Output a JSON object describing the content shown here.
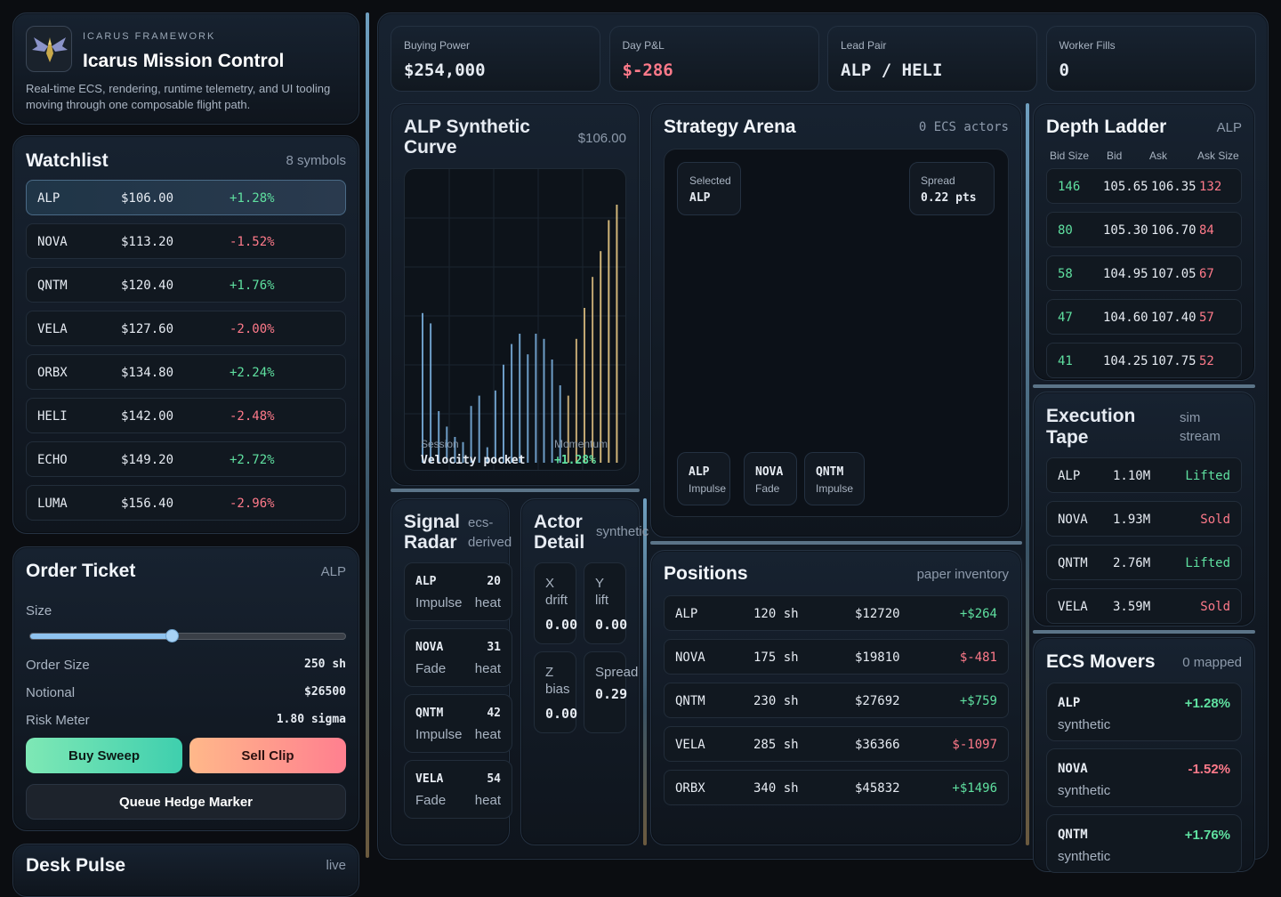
{
  "brand": {
    "kicker": "ICARUS FRAMEWORK",
    "title": "Icarus Mission Control",
    "desc": "Real-time ECS, rendering, runtime telemetry, and UI tooling moving through one composable flight path."
  },
  "watchlist": {
    "title": "Watchlist",
    "count": "8 symbols",
    "items": [
      {
        "sym": "ALP",
        "price": "$106.00",
        "chg": "+1.28%",
        "dir": "pos"
      },
      {
        "sym": "NOVA",
        "price": "$113.20",
        "chg": "-1.52%",
        "dir": "neg"
      },
      {
        "sym": "QNTM",
        "price": "$120.40",
        "chg": "+1.76%",
        "dir": "pos"
      },
      {
        "sym": "VELA",
        "price": "$127.60",
        "chg": "-2.00%",
        "dir": "neg"
      },
      {
        "sym": "ORBX",
        "price": "$134.80",
        "chg": "+2.24%",
        "dir": "pos"
      },
      {
        "sym": "HELI",
        "price": "$142.00",
        "chg": "-2.48%",
        "dir": "neg"
      },
      {
        "sym": "ECHO",
        "price": "$149.20",
        "chg": "+2.72%",
        "dir": "pos"
      },
      {
        "sym": "LUMA",
        "price": "$156.40",
        "chg": "-2.96%",
        "dir": "neg"
      }
    ]
  },
  "ticket": {
    "title": "Order Ticket",
    "symbol": "ALP",
    "size_label": "Size",
    "slider_value": 0.45,
    "order_size_label": "Order Size",
    "order_size": "250 sh",
    "notional_label": "Notional",
    "notional": "$26500",
    "risk_label": "Risk Meter",
    "risk": "1.80 sigma",
    "buy": "Buy Sweep",
    "sell": "Sell Clip",
    "hedge": "Queue Hedge Marker"
  },
  "pulse": {
    "title": "Desk Pulse",
    "status": "live"
  },
  "stats": [
    {
      "label": "Buying Power",
      "value": "$254,000",
      "dir": ""
    },
    {
      "label": "Day P&L",
      "value": "$-286",
      "dir": "neg"
    },
    {
      "label": "Lead Pair",
      "value": "ALP / HELI",
      "dir": ""
    },
    {
      "label": "Worker Fills",
      "value": "0",
      "dir": ""
    }
  ],
  "curve": {
    "title": "ALP Synthetic Curve",
    "price": "$106.00",
    "session_label": "Session",
    "session_value": "Velocity pocket",
    "momentum_label": "Momentum",
    "momentum_value": "+1.28%",
    "bars": [
      0.58,
      0.54,
      0.2,
      0.14,
      0.1,
      0.08,
      0.22,
      0.26,
      0.06,
      0.28,
      0.38,
      0.46,
      0.5,
      0.42,
      0.5,
      0.48,
      0.4,
      0.3,
      0.26,
      0.48,
      0.6,
      0.72,
      0.82,
      0.94,
      1.0
    ]
  },
  "arena": {
    "title": "Strategy Arena",
    "actors": "0 ECS actors",
    "selected_label": "Selected",
    "selected_value": "ALP",
    "spread_label": "Spread",
    "spread_value": "0.22 pts",
    "chips": [
      {
        "sym": "ALP",
        "mode": "Impulse"
      },
      {
        "sym": "NOVA",
        "mode": "Fade"
      },
      {
        "sym": "QNTM",
        "mode": "Impulse"
      }
    ]
  },
  "depth": {
    "title": "Depth Ladder",
    "symbol": "ALP",
    "headers": [
      "Bid Size",
      "Bid",
      "Ask",
      "Ask Size"
    ],
    "rows": [
      {
        "bs": "146",
        "bid": "105.65",
        "ask": "106.35",
        "as": "132"
      },
      {
        "bs": "80",
        "bid": "105.30",
        "ask": "106.70",
        "as": "84"
      },
      {
        "bs": "58",
        "bid": "104.95",
        "ask": "107.05",
        "as": "67"
      },
      {
        "bs": "47",
        "bid": "104.60",
        "ask": "107.40",
        "as": "57"
      },
      {
        "bs": "41",
        "bid": "104.25",
        "ask": "107.75",
        "as": "52"
      }
    ]
  },
  "tape": {
    "title1": "Execution",
    "title2": "Tape",
    "sub1": "sim",
    "sub2": "stream",
    "rows": [
      {
        "sym": "ALP",
        "vol": "1.10M",
        "act": "Lifted",
        "dir": "pos"
      },
      {
        "sym": "NOVA",
        "vol": "1.93M",
        "act": "Sold",
        "dir": "neg"
      },
      {
        "sym": "QNTM",
        "vol": "2.76M",
        "act": "Lifted",
        "dir": "pos"
      },
      {
        "sym": "VELA",
        "vol": "3.59M",
        "act": "Sold",
        "dir": "neg"
      }
    ]
  },
  "radar": {
    "title1": "Signal",
    "title2": "Radar",
    "sub1": "ecs-",
    "sub2": "derived",
    "rows": [
      {
        "sym": "ALP",
        "val": "20",
        "mode": "Impulse",
        "unit": "heat"
      },
      {
        "sym": "NOVA",
        "val": "31",
        "mode": "Fade",
        "unit": "heat"
      },
      {
        "sym": "QNTM",
        "val": "42",
        "mode": "Impulse",
        "unit": "heat"
      },
      {
        "sym": "VELA",
        "val": "54",
        "mode": "Fade",
        "unit": "heat"
      }
    ]
  },
  "actor": {
    "title1": "Actor",
    "title2": "Detail",
    "sub": "synthetic",
    "cells": [
      {
        "l1": "X",
        "l2": "drift",
        "val": "0.00"
      },
      {
        "l1": "Y",
        "l2": "lift",
        "val": "0.00"
      },
      {
        "l1": "Z",
        "l2": "bias",
        "val": "0.00"
      },
      {
        "l1": "Spread",
        "l2": "",
        "val": "0.29"
      }
    ]
  },
  "positions": {
    "title": "Positions",
    "sub": "paper inventory",
    "rows": [
      {
        "sym": "ALP",
        "qty": "120 sh",
        "val": "$12720",
        "pnl": "+$264",
        "dir": "pos"
      },
      {
        "sym": "NOVA",
        "qty": "175 sh",
        "val": "$19810",
        "pnl": "$-481",
        "dir": "neg"
      },
      {
        "sym": "QNTM",
        "qty": "230 sh",
        "val": "$27692",
        "pnl": "+$759",
        "dir": "pos"
      },
      {
        "sym": "VELA",
        "qty": "285 sh",
        "val": "$36366",
        "pnl": "$-1097",
        "dir": "neg"
      },
      {
        "sym": "ORBX",
        "qty": "340 sh",
        "val": "$45832",
        "pnl": "+$1496",
        "dir": "pos"
      }
    ]
  },
  "movers": {
    "title": "ECS Movers",
    "sub": "0 mapped",
    "rows": [
      {
        "sym": "ALP",
        "note": "synthetic",
        "chg": "+1.28%",
        "dir": "pos"
      },
      {
        "sym": "NOVA",
        "note": "synthetic",
        "chg": "-1.52%",
        "dir": "neg"
      },
      {
        "sym": "QNTM",
        "note": "synthetic",
        "chg": "+1.76%",
        "dir": "pos"
      }
    ]
  }
}
